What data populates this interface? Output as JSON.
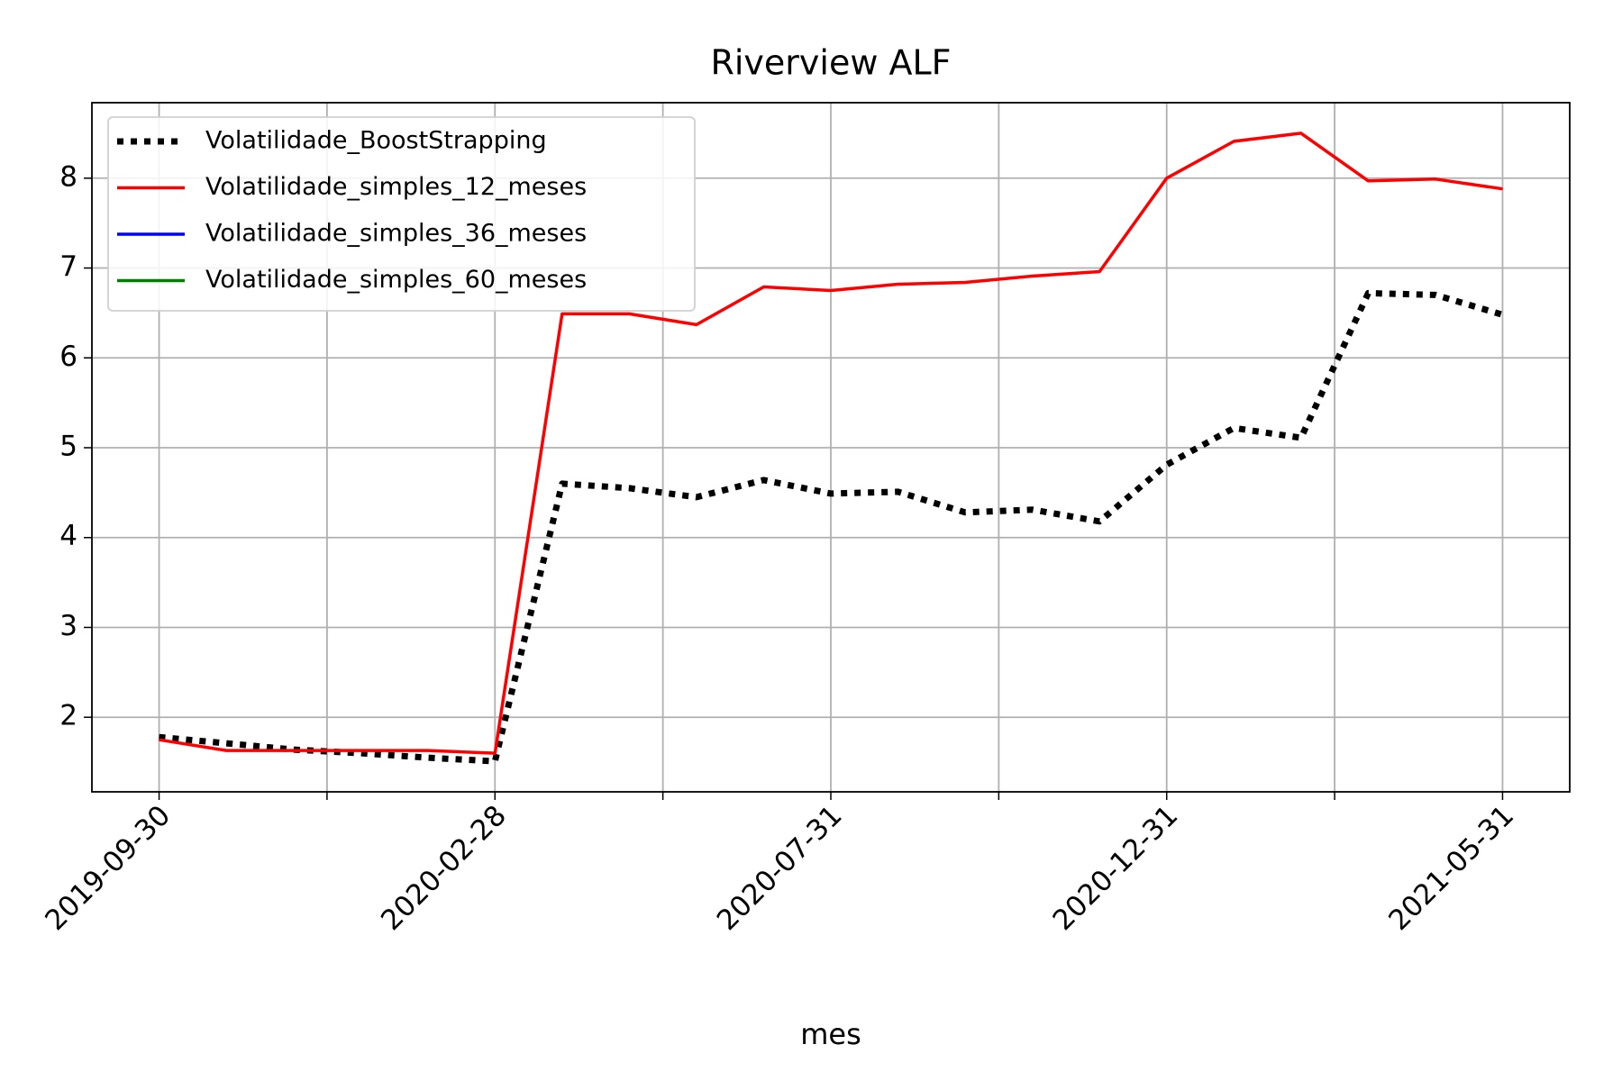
{
  "chart_data": {
    "type": "line",
    "title": "Riverview ALF",
    "xlabel": "mes",
    "categories": [
      "2019-09-30",
      null,
      null,
      null,
      null,
      "2020-02-28",
      null,
      null,
      null,
      null,
      "2020-07-31",
      null,
      null,
      null,
      null,
      "2020-12-31",
      null,
      null,
      null,
      null,
      "2021-05-31"
    ],
    "series": [
      {
        "name": "Volatilidade_BoostStrapping",
        "color": "#000000",
        "linestyle": "dotted",
        "values": [
          1.78,
          1.71,
          1.64,
          1.6,
          1.55,
          1.51,
          4.6,
          4.55,
          4.45,
          4.64,
          4.49,
          4.51,
          4.28,
          4.31,
          4.18,
          4.81,
          5.22,
          5.11,
          6.72,
          6.7,
          6.48
        ]
      },
      {
        "name": "Volatilidade_simples_12_meses",
        "color": "#ff0000",
        "linestyle": "solid",
        "values": [
          1.75,
          1.63,
          1.63,
          1.63,
          1.63,
          1.6,
          6.49,
          6.49,
          6.37,
          6.79,
          6.75,
          6.82,
          6.84,
          6.91,
          6.96,
          8.0,
          8.41,
          8.5,
          7.97,
          7.99,
          7.88
        ]
      },
      {
        "name": "Volatilidade_simples_36_meses",
        "color": "#0000ff",
        "linestyle": "solid",
        "values": [
          null,
          null,
          null,
          null,
          null,
          null,
          null,
          null,
          null,
          null,
          null,
          null,
          null,
          null,
          null,
          null,
          null,
          null,
          null,
          null,
          null
        ]
      },
      {
        "name": "Volatilidade_simples_60_meses",
        "color": "#008000",
        "linestyle": "solid",
        "values": [
          null,
          null,
          null,
          null,
          null,
          null,
          null,
          null,
          null,
          null,
          null,
          null,
          null,
          null,
          null,
          null,
          null,
          null,
          null,
          null,
          null
        ]
      }
    ],
    "ylim": [
      1.17,
      8.84
    ],
    "yticks": [
      2,
      3,
      4,
      5,
      6,
      7,
      8
    ],
    "grid": true,
    "legend": "upper left"
  }
}
